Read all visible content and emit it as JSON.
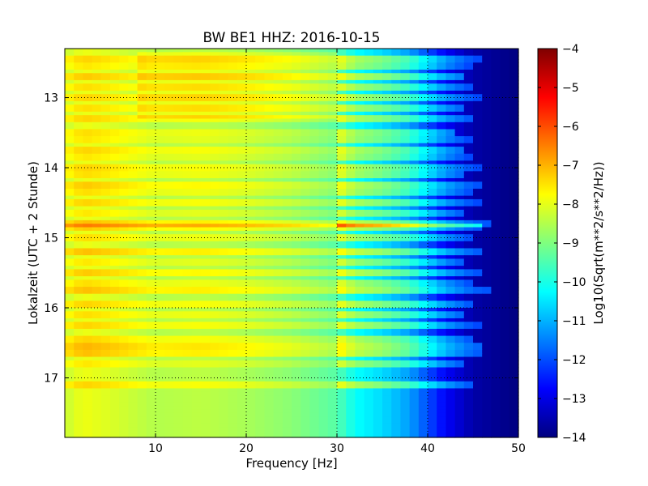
{
  "chart_data": {
    "type": "heatmap",
    "title": "BW BE1 HHZ: 2016-10-15",
    "xlabel": "Frequency [Hz]",
    "ylabel": "Lokalzeit (UTC + 2 Stunde)",
    "colorbar_label": "Log10(Sqrt(m**2/s**2/Hz))",
    "xlim": [
      0,
      50
    ],
    "ylim": [
      12.3,
      17.85
    ],
    "y_inverted": true,
    "x_ticks": [
      10,
      20,
      30,
      40,
      50
    ],
    "x_tick_labels": [
      "10",
      "20",
      "30",
      "40",
      "50"
    ],
    "y_ticks": [
      13,
      14,
      15,
      16,
      17
    ],
    "y_tick_labels": [
      "13",
      "14",
      "15",
      "16",
      "17"
    ],
    "colorbar_range": [
      -14,
      -4
    ],
    "colorbar_ticks": [
      -4,
      -5,
      -6,
      -7,
      -8,
      -9,
      -10,
      -11,
      -12,
      -13,
      -14
    ],
    "colorbar_tick_labels": [
      "−4",
      "−5",
      "−6",
      "−7",
      "−8",
      "−9",
      "−10",
      "−11",
      "−12",
      "−13",
      "−14"
    ],
    "colormap": "jet",
    "grid": true,
    "grid_lines_at_x": [
      10,
      20,
      30,
      40
    ],
    "grid_lines_at_y": [
      13,
      14,
      15,
      16,
      17
    ],
    "frequency_profile": {
      "frequency_hz": [
        0,
        2,
        5,
        10,
        15,
        20,
        25,
        30,
        32,
        35,
        38,
        40,
        42,
        45,
        50
      ],
      "log10_amplitude": [
        -8.3,
        -7.9,
        -8.1,
        -8.5,
        -8.4,
        -8.6,
        -8.9,
        -9.4,
        -10.2,
        -10.6,
        -11.2,
        -12.0,
        -12.8,
        -13.6,
        -14.0
      ]
    },
    "event_bands": {
      "time_hours": [
        12.45,
        12.55,
        12.7,
        12.85,
        13.0,
        13.15,
        13.3,
        13.5,
        13.6,
        13.75,
        13.85,
        14.0,
        14.1,
        14.25,
        14.35,
        14.5,
        14.65,
        14.8,
        14.85,
        15.0,
        15.2,
        15.35,
        15.5,
        15.65,
        15.75,
        15.95,
        16.1,
        16.25,
        16.45,
        16.55,
        16.65,
        16.8,
        17.1
      ],
      "intensity_log10_offset": [
        0.6,
        0.4,
        0.7,
        0.5,
        0.6,
        0.5,
        0.6,
        0.5,
        0.4,
        0.6,
        0.4,
        0.6,
        0.5,
        0.7,
        0.5,
        0.6,
        0.4,
        0.8,
        0.7,
        0.5,
        0.8,
        0.4,
        0.7,
        0.5,
        0.8,
        0.6,
        0.5,
        0.6,
        0.6,
        0.9,
        0.8,
        0.4,
        0.6
      ],
      "max_frequency_hz": [
        46,
        45,
        44,
        45,
        46,
        44,
        45,
        43,
        45,
        44,
        45,
        46,
        44,
        46,
        45,
        46,
        44,
        47,
        46,
        45,
        46,
        44,
        46,
        45,
        47,
        45,
        44,
        46,
        45,
        46,
        46,
        44,
        45
      ]
    },
    "background_patch": {
      "time_hours": [
        12.35,
        13.3
      ],
      "frequency_hz": [
        8,
        30
      ],
      "intensity_log10_offset": 0.5
    }
  }
}
